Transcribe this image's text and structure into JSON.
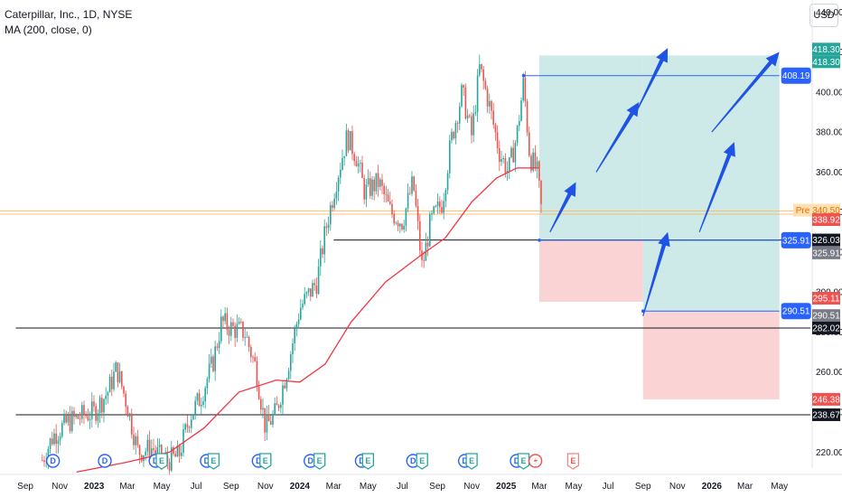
{
  "header": {
    "title": "Caterpillar, Inc., 1D, NYSE",
    "indicator": "MA (200, close, 0)",
    "currency": "USD"
  },
  "colors": {
    "up": "#26a69a",
    "down": "#ef5350",
    "ma": "#f23645",
    "target_zone": "#b2dfdb",
    "stop_zone": "#f8c6c6",
    "arrow": "#1e53e5",
    "line_blue": "#2962ff"
  },
  "chart_data": {
    "type": "candlestick",
    "title": "Caterpillar, Inc., 1D, NYSE",
    "y_axis": {
      "ticks": [
        220,
        240,
        260,
        280,
        300,
        320,
        340,
        360,
        380,
        400,
        420,
        440
      ],
      "range": [
        212,
        446
      ],
      "side": "right"
    },
    "x_axis": {
      "labels": [
        "Sep",
        "Nov",
        "2023",
        "Mar",
        "May",
        "Jul",
        "Sep",
        "Nov",
        "2024",
        "Mar",
        "May",
        "Jul",
        "Sep",
        "Nov",
        "2025",
        "Mar",
        "May",
        "Jul",
        "Sep",
        "Nov",
        "2026",
        "Mar",
        "May"
      ]
    },
    "price_path": [
      [
        "2022-10-01",
        216
      ],
      [
        "2022-10-20",
        228
      ],
      [
        "2022-11-15",
        235
      ],
      [
        "2022-12-10",
        238
      ],
      [
        "2023-01-01",
        240
      ],
      [
        "2023-01-25",
        250
      ],
      [
        "2023-02-10",
        262
      ],
      [
        "2023-02-28",
        244
      ],
      [
        "2023-03-20",
        220
      ],
      [
        "2023-04-15",
        222
      ],
      [
        "2023-05-05",
        215
      ],
      [
        "2023-05-31",
        218
      ],
      [
        "2023-06-20",
        238
      ],
      [
        "2023-07-10",
        248
      ],
      [
        "2023-07-31",
        265
      ],
      [
        "2023-08-15",
        285
      ],
      [
        "2023-09-01",
        282
      ],
      [
        "2023-09-25",
        280
      ],
      [
        "2023-10-15",
        262
      ],
      [
        "2023-11-01",
        232
      ],
      [
        "2023-11-20",
        240
      ],
      [
        "2023-12-10",
        262
      ],
      [
        "2024-01-01",
        292
      ],
      [
        "2024-01-31",
        305
      ],
      [
        "2024-02-15",
        330
      ],
      [
        "2024-03-05",
        355
      ],
      [
        "2024-03-25",
        378
      ],
      [
        "2024-04-10",
        368
      ],
      [
        "2024-04-25",
        350
      ],
      [
        "2024-05-20",
        355
      ],
      [
        "2024-06-10",
        340
      ],
      [
        "2024-07-01",
        335
      ],
      [
        "2024-07-20",
        355
      ],
      [
        "2024-08-05",
        312
      ],
      [
        "2024-08-20",
        335
      ],
      [
        "2024-09-10",
        345
      ],
      [
        "2024-09-25",
        375
      ],
      [
        "2024-10-15",
        400
      ],
      [
        "2024-11-01",
        378
      ],
      [
        "2024-11-15",
        412
      ],
      [
        "2024-12-01",
        395
      ],
      [
        "2024-12-20",
        370
      ],
      [
        "2025-01-05",
        360
      ],
      [
        "2025-01-20",
        378
      ],
      [
        "2025-02-01",
        405
      ],
      [
        "2025-02-12",
        368
      ],
      [
        "2025-02-25",
        360
      ],
      [
        "2025-03-05",
        340
      ]
    ],
    "moving_average": [
      [
        "2022-12-01",
        210
      ],
      [
        "2023-03-01",
        215
      ],
      [
        "2023-05-15",
        220
      ],
      [
        "2023-07-15",
        232
      ],
      [
        "2023-09-15",
        250
      ],
      [
        "2023-11-20",
        256
      ],
      [
        "2024-01-01",
        255
      ],
      [
        "2024-02-15",
        264
      ],
      [
        "2024-04-01",
        285
      ],
      [
        "2024-06-01",
        305
      ],
      [
        "2024-08-01",
        318
      ],
      [
        "2024-09-15",
        327
      ],
      [
        "2024-11-01",
        345
      ],
      [
        "2024-12-15",
        357
      ],
      [
        "2025-01-20",
        362
      ],
      [
        "2025-03-01",
        362
      ]
    ],
    "horizontal_lines": [
      {
        "label": "326.03",
        "value": 326.03,
        "from": "2024-03-01"
      },
      {
        "label": "282.02",
        "value": 282.02,
        "from": "2022-08-15"
      },
      {
        "label": "238.67",
        "value": 238.67,
        "from": "2022-08-15"
      }
    ],
    "positions": [
      {
        "from": "2025-03-01",
        "to": "2025-09-01",
        "entry": 325.91,
        "target": 418.3,
        "stop": 295.11
      },
      {
        "from": "2025-09-01",
        "to": "2026-05-01",
        "entry": 290.51,
        "target": 418.3,
        "stop": 246.38
      }
    ],
    "blue_lines": [
      {
        "label": "408.19",
        "value": 408.19,
        "from": "2025-02-01",
        "to": "2026-05-01"
      },
      {
        "label": "325.91",
        "value": 325.91,
        "from": "2025-03-01",
        "to": "2026-05-01"
      },
      {
        "label": "290.51",
        "value": 290.51,
        "from": "2025-09-01",
        "to": "2026-05-01"
      }
    ],
    "arrows": [
      {
        "from": [
          "2025-03-20",
          330
        ],
        "to": [
          "2025-05-05",
          355
        ]
      },
      {
        "from": [
          "2025-06-10",
          360
        ],
        "to": [
          "2025-08-25",
          395
        ]
      },
      {
        "from": [
          "2025-08-20",
          390
        ],
        "to": [
          "2025-10-15",
          422
        ]
      },
      {
        "from": [
          "2025-09-01",
          288
        ],
        "to": [
          "2025-10-15",
          330
        ]
      },
      {
        "from": [
          "2025-12-10",
          330
        ],
        "to": [
          "2026-02-10",
          375
        ]
      },
      {
        "from": [
          "2026-01-01",
          380
        ],
        "to": [
          "2026-05-01",
          420
        ]
      }
    ],
    "current_price_lines": [
      340.5,
      338.92
    ],
    "price_badges": [
      {
        "text": "418.30",
        "value": 418.3,
        "offset": -7,
        "bg": "#26a69a",
        "fg": "#ffffff"
      },
      {
        "text": "418.30",
        "value": 418.3,
        "offset": 7,
        "bg": "#26a69a",
        "fg": "#ffffff"
      },
      {
        "text": "340.50",
        "value": 340.5,
        "offset": -1,
        "bg": "#ffe0b2",
        "fg": "#ef6c00"
      },
      {
        "text": "338.92",
        "value": 338.92,
        "offset": 6,
        "bg": "#ef5350",
        "fg": "#ffffff"
      },
      {
        "text": "326.03",
        "value": 326.03,
        "offset": 0,
        "bg": "#131722",
        "fg": "#ffffff"
      },
      {
        "text": "325.91",
        "value": 325.91,
        "offset": 14,
        "bg": "#787b86",
        "fg": "#ffffff"
      },
      {
        "text": "295.11",
        "value": 295.11,
        "offset": -4,
        "bg": "#ef5350",
        "fg": "#ffffff"
      },
      {
        "text": "290.51",
        "value": 290.51,
        "offset": 5,
        "bg": "#787b86",
        "fg": "#ffffff"
      },
      {
        "text": "282.02",
        "value": 282.02,
        "offset": 0,
        "bg": "#131722",
        "fg": "#ffffff"
      },
      {
        "text": "246.38",
        "value": 246.38,
        "offset": 0,
        "bg": "#ef5350",
        "fg": "#ffffff"
      },
      {
        "text": "238.67",
        "value": 238.67,
        "offset": 0,
        "bg": "#131722",
        "fg": "#ffffff"
      }
    ],
    "pre_label": "Pre",
    "events": [
      {
        "kind": "D",
        "date": "2022-10-20"
      },
      {
        "kind": "D",
        "date": "2023-01-20"
      },
      {
        "kind": "D",
        "date": "2023-04-20"
      },
      {
        "kind": "E",
        "date": "2023-05-01"
      },
      {
        "kind": "D",
        "date": "2023-07-20"
      },
      {
        "kind": "E",
        "date": "2023-08-01"
      },
      {
        "kind": "D",
        "date": "2023-10-20"
      },
      {
        "kind": "E",
        "date": "2023-11-01"
      },
      {
        "kind": "D",
        "date": "2024-01-20"
      },
      {
        "kind": "E",
        "date": "2024-02-05"
      },
      {
        "kind": "D",
        "date": "2024-04-20"
      },
      {
        "kind": "E",
        "date": "2024-05-01"
      },
      {
        "kind": "D",
        "date": "2024-07-20"
      },
      {
        "kind": "E",
        "date": "2024-08-05"
      },
      {
        "kind": "D",
        "date": "2024-10-20"
      },
      {
        "kind": "E",
        "date": "2024-11-01"
      },
      {
        "kind": "D",
        "date": "2025-01-20"
      },
      {
        "kind": "E",
        "date": "2025-02-01"
      },
      {
        "kind": "S",
        "date": "2025-02-22"
      },
      {
        "kind": "E",
        "date": "2025-04-30"
      }
    ]
  }
}
